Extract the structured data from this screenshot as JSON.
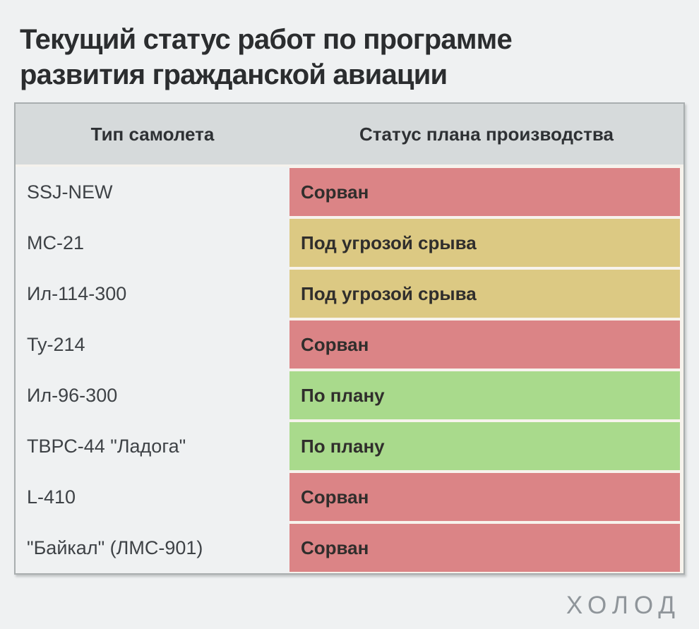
{
  "title": {
    "full": "Текущий статус работ по программе развития гражданской авиации",
    "line1": "Текущий статус работ по программе",
    "line2": "развития гражданской авиации"
  },
  "chart_data": {
    "type": "table",
    "title": "Текущий статус работ по программе развития гражданской авиации",
    "columns": [
      "Тип самолета",
      "Статус плана производства"
    ],
    "rows": [
      {
        "aircraft": "SSJ-NEW",
        "status": "Сорван",
        "severity": "disrupted"
      },
      {
        "aircraft": "МС-21",
        "status": "Под угрозой срыва",
        "severity": "at-risk"
      },
      {
        "aircraft": "Ил-114-300",
        "status": "Под угрозой срыва",
        "severity": "at-risk"
      },
      {
        "aircraft": "Ту-214",
        "status": "Сорван",
        "severity": "disrupted"
      },
      {
        "aircraft": "Ил-96-300",
        "status": "По плану",
        "severity": "on-track"
      },
      {
        "aircraft": "ТВРС-44 \"Ладога\"",
        "status": "По плану",
        "severity": "on-track"
      },
      {
        "aircraft": "L-410",
        "status": "Сорван",
        "severity": "disrupted"
      },
      {
        "aircraft": "\"Байкал\" (ЛМС-901)",
        "status": "Сорван",
        "severity": "disrupted"
      }
    ],
    "legend_position": "none",
    "grid": false
  },
  "colors": {
    "disrupted": "#DB8486",
    "at-risk": "#DCC983",
    "on-track": "#A9DA8C",
    "page_background": "#EFF1F2",
    "header_background": "#D6DADB",
    "table_border": "#A9AEAF",
    "cell_gap": "#F7F3ED",
    "title_text": "#2B2D2F",
    "status_text": "#302E2C",
    "type_text": "#3E4246",
    "logo_text": "#8F959A"
  },
  "logo": "ХОЛОД"
}
